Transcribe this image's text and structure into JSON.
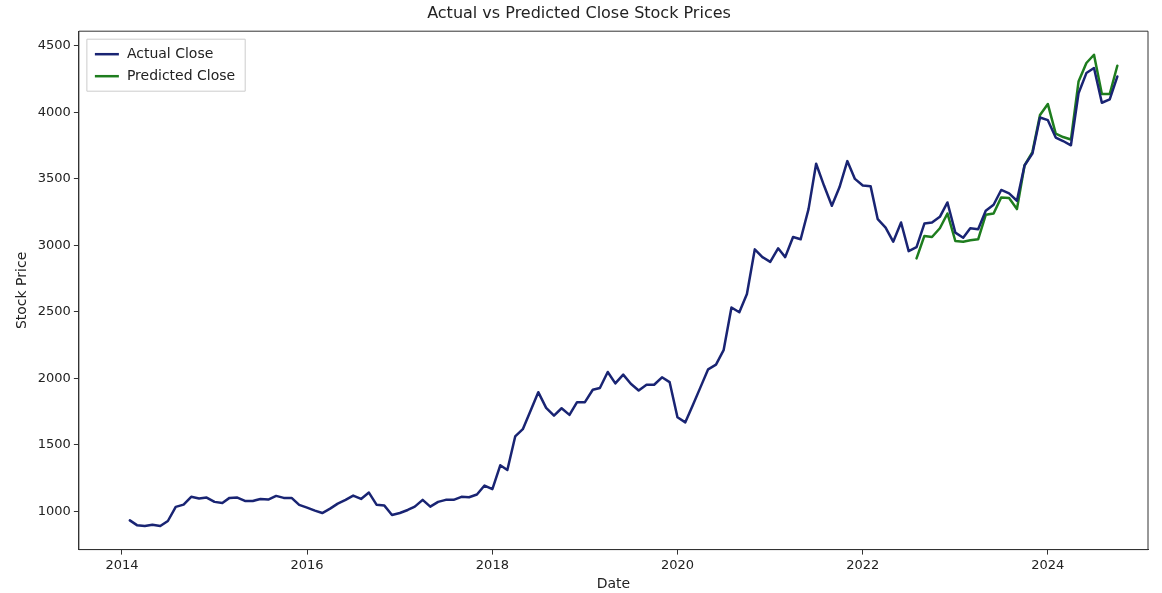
{
  "chart_data": {
    "type": "line",
    "title": "Actual vs Predicted Close Stock Prices",
    "xlabel": "Date",
    "ylabel": "Stock Price",
    "x": [
      "2014-02",
      "2014-03",
      "2014-04",
      "2014-05",
      "2014-06",
      "2014-07",
      "2014-08",
      "2014-09",
      "2014-10",
      "2014-11",
      "2014-12",
      "2015-01",
      "2015-02",
      "2015-03",
      "2015-04",
      "2015-05",
      "2015-06",
      "2015-07",
      "2015-08",
      "2015-09",
      "2015-10",
      "2015-11",
      "2015-12",
      "2016-01",
      "2016-02",
      "2016-03",
      "2016-04",
      "2016-05",
      "2016-06",
      "2016-07",
      "2016-08",
      "2016-09",
      "2016-10",
      "2016-11",
      "2016-12",
      "2017-01",
      "2017-02",
      "2017-03",
      "2017-04",
      "2017-05",
      "2017-06",
      "2017-07",
      "2017-08",
      "2017-09",
      "2017-10",
      "2017-11",
      "2017-12",
      "2018-01",
      "2018-02",
      "2018-03",
      "2018-04",
      "2018-05",
      "2018-06",
      "2018-07",
      "2018-08",
      "2018-09",
      "2018-10",
      "2018-11",
      "2018-12",
      "2019-01",
      "2019-02",
      "2019-03",
      "2019-04",
      "2019-05",
      "2019-06",
      "2019-07",
      "2019-08",
      "2019-09",
      "2019-10",
      "2019-11",
      "2019-12",
      "2020-01",
      "2020-02",
      "2020-03",
      "2020-04",
      "2020-05",
      "2020-06",
      "2020-07",
      "2020-08",
      "2020-09",
      "2020-10",
      "2020-11",
      "2020-12",
      "2021-01",
      "2021-02",
      "2021-03",
      "2021-04",
      "2021-05",
      "2021-06",
      "2021-07",
      "2021-08",
      "2021-09",
      "2021-10",
      "2021-11",
      "2021-12",
      "2022-01",
      "2022-02",
      "2022-03",
      "2022-04",
      "2022-05",
      "2022-06",
      "2022-07",
      "2022-08",
      "2022-09",
      "2022-10",
      "2022-11",
      "2022-12",
      "2023-01",
      "2023-02",
      "2023-03",
      "2023-04",
      "2023-05",
      "2023-06",
      "2023-07",
      "2023-08",
      "2023-09",
      "2023-10",
      "2023-11",
      "2023-12",
      "2024-01",
      "2024-02",
      "2024-03",
      "2024-04",
      "2024-05",
      "2024-06",
      "2024-07",
      "2024-08",
      "2024-09",
      "2024-10"
    ],
    "series": [
      {
        "name": "Actual Close",
        "color": "#192473",
        "values": [
          931,
          895,
          888,
          898,
          888,
          926,
          1032,
          1049,
          1108,
          1095,
          1102,
          1070,
          1062,
          1100,
          1102,
          1077,
          1077,
          1092,
          1087,
          1115,
          1100,
          1100,
          1047,
          1027,
          1004,
          986,
          1019,
          1057,
          1085,
          1117,
          1092,
          1140,
          1049,
          1042,
          971,
          986,
          1009,
          1034,
          1085,
          1034,
          1070,
          1085,
          1085,
          1108,
          1105,
          1125,
          1193,
          1166,
          1345,
          1310,
          1562,
          1617,
          1757,
          1895,
          1777,
          1719,
          1774,
          1724,
          1820,
          1820,
          1913,
          1926,
          2047,
          1961,
          2027,
          1958,
          1908,
          1951,
          1951,
          2007,
          1971,
          1706,
          1668,
          1795,
          1933,
          2067,
          2102,
          2211,
          2532,
          2496,
          2633,
          2969,
          2911,
          2875,
          2977,
          2911,
          3062,
          3045,
          3272,
          3613,
          3449,
          3297,
          3436,
          3633,
          3499,
          3449,
          3443,
          3196,
          3133,
          3027,
          3171,
          2956,
          2986,
          3163,
          3171,
          3214,
          3322,
          3095,
          3057,
          3128,
          3121,
          3259,
          3305,
          3416,
          3390,
          3335,
          3600,
          3689,
          3961,
          3941,
          3810,
          3784,
          3752,
          4143,
          4295,
          4333,
          4072,
          4098,
          4269
        ]
      },
      {
        "name": "Predicted Close",
        "color": "#1e7d1e",
        "x": [
          "2022-08",
          "2022-09",
          "2022-10",
          "2022-11",
          "2022-12",
          "2023-01",
          "2023-02",
          "2023-03",
          "2023-04",
          "2023-05",
          "2023-06",
          "2023-07",
          "2023-08",
          "2023-09",
          "2023-10",
          "2023-11",
          "2023-12",
          "2024-01",
          "2024-02",
          "2024-03",
          "2024-04",
          "2024-05",
          "2024-06",
          "2024-07",
          "2024-08",
          "2024-09",
          "2024-10"
        ],
        "values": [
          2901,
          3070,
          3062,
          3128,
          3239,
          3032,
          3027,
          3037,
          3045,
          3229,
          3239,
          3360,
          3355,
          3272,
          3600,
          3701,
          3979,
          4062,
          3840,
          3814,
          3795,
          4231,
          4371,
          4433,
          4138,
          4138,
          4350
        ]
      }
    ],
    "xlim": [
      "2013-07-15",
      "2025-01-30"
    ],
    "xticks": [
      "2014",
      "2016",
      "2018",
      "2020",
      "2022",
      "2024"
    ],
    "ylim": [
      711,
      4610
    ],
    "yticks": [
      1000,
      1500,
      2000,
      2500,
      3000,
      3500,
      4000,
      4500
    ],
    "grid": false,
    "legend": "top left",
    "marker": "none",
    "line_style": "solid"
  }
}
